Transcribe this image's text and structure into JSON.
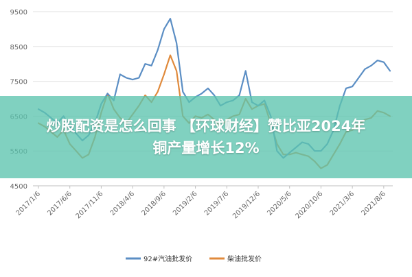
{
  "chart_data": {
    "type": "line",
    "title": "",
    "xlabel": "",
    "ylabel": "",
    "ylim": [
      4500,
      9500
    ],
    "yticks": [
      4500,
      5500,
      6500,
      7500,
      8500,
      9500
    ],
    "x_tick_labels": [
      "2017/1/6",
      "2017/6/6",
      "2017/11/6",
      "2018/4/6",
      "2018/9/6",
      "2019/2/6",
      "2019/7/6",
      "2019/12/6",
      "2020/5/6",
      "2020/10/6",
      "2021/3/6",
      "2021/8/6"
    ],
    "grid": {
      "horizontal": true,
      "vertical": false
    },
    "legend_position": "bottom-center",
    "series": [
      {
        "name": "92#汽油批发价",
        "color": "#5b8ec4",
        "points": [
          [
            "2017/1/6",
            6700
          ],
          [
            "2017/2/6",
            6600
          ],
          [
            "2017/3/6",
            6450
          ],
          [
            "2017/4/6",
            6300
          ],
          [
            "2017/5/6",
            6500
          ],
          [
            "2017/6/6",
            6200
          ],
          [
            "2017/7/6",
            6000
          ],
          [
            "2017/8/6",
            5800
          ],
          [
            "2017/9/6",
            5950
          ],
          [
            "2017/10/6",
            6300
          ],
          [
            "2017/11/6",
            6850
          ],
          [
            "2017/12/6",
            7150
          ],
          [
            "2018/1/6",
            6950
          ],
          [
            "2018/2/6",
            7700
          ],
          [
            "2018/3/6",
            7600
          ],
          [
            "2018/4/6",
            7550
          ],
          [
            "2018/5/6",
            7600
          ],
          [
            "2018/6/6",
            8000
          ],
          [
            "2018/7/6",
            7950
          ],
          [
            "2018/8/6",
            8400
          ],
          [
            "2018/9/6",
            9000
          ],
          [
            "2018/10/6",
            9300
          ],
          [
            "2018/11/6",
            8600
          ],
          [
            "2018/12/6",
            7200
          ],
          [
            "2019/1/6",
            6900
          ],
          [
            "2019/2/6",
            7050
          ],
          [
            "2019/3/6",
            7150
          ],
          [
            "2019/4/6",
            7300
          ],
          [
            "2019/5/6",
            7100
          ],
          [
            "2019/6/6",
            6800
          ],
          [
            "2019/7/6",
            6900
          ],
          [
            "2019/8/6",
            6950
          ],
          [
            "2019/9/6",
            7100
          ],
          [
            "2019/10/6",
            7800
          ],
          [
            "2019/11/6",
            6900
          ],
          [
            "2019/12/6",
            6800
          ],
          [
            "2020/1/6",
            6950
          ],
          [
            "2020/2/6",
            6500
          ],
          [
            "2020/3/6",
            5500
          ],
          [
            "2020/4/6",
            5300
          ],
          [
            "2020/5/6",
            5450
          ],
          [
            "2020/6/6",
            5600
          ],
          [
            "2020/7/6",
            5750
          ],
          [
            "2020/8/6",
            5700
          ],
          [
            "2020/9/6",
            5500
          ],
          [
            "2020/10/6",
            5500
          ],
          [
            "2020/11/6",
            5700
          ],
          [
            "2020/12/6",
            6100
          ],
          [
            "2021/1/6",
            6800
          ],
          [
            "2021/2/6",
            7300
          ],
          [
            "2021/3/6",
            7350
          ],
          [
            "2021/4/6",
            7600
          ],
          [
            "2021/5/6",
            7850
          ],
          [
            "2021/6/6",
            7950
          ],
          [
            "2021/7/6",
            8100
          ],
          [
            "2021/8/6",
            8050
          ],
          [
            "2021/9/6",
            7800
          ]
        ]
      },
      {
        "name": "柴油批发价",
        "color": "#e08a3c",
        "points": [
          [
            "2017/1/6",
            6300
          ],
          [
            "2017/2/6",
            6200
          ],
          [
            "2017/3/6",
            6050
          ],
          [
            "2017/4/6",
            5900
          ],
          [
            "2017/5/6",
            6100
          ],
          [
            "2017/6/6",
            5700
          ],
          [
            "2017/7/6",
            5500
          ],
          [
            "2017/8/6",
            5300
          ],
          [
            "2017/9/6",
            5400
          ],
          [
            "2017/10/6",
            5900
          ],
          [
            "2017/11/6",
            6600
          ],
          [
            "2017/12/6",
            7150
          ],
          [
            "2018/1/6",
            6700
          ],
          [
            "2018/2/6",
            6450
          ],
          [
            "2018/3/6",
            6300
          ],
          [
            "2018/4/6",
            6550
          ],
          [
            "2018/5/6",
            6800
          ],
          [
            "2018/6/6",
            7100
          ],
          [
            "2018/7/6",
            6900
          ],
          [
            "2018/8/6",
            7200
          ],
          [
            "2018/9/6",
            7700
          ],
          [
            "2018/10/6",
            8250
          ],
          [
            "2018/11/6",
            7800
          ],
          [
            "2018/12/6",
            6500
          ],
          [
            "2019/1/6",
            6300
          ],
          [
            "2019/2/6",
            6500
          ],
          [
            "2019/3/6",
            6450
          ],
          [
            "2019/4/6",
            6550
          ],
          [
            "2019/5/6",
            6400
          ],
          [
            "2019/6/6",
            6200
          ],
          [
            "2019/7/6",
            6400
          ],
          [
            "2019/8/6",
            6500
          ],
          [
            "2019/9/6",
            6550
          ],
          [
            "2019/10/6",
            7000
          ],
          [
            "2019/11/6",
            6700
          ],
          [
            "2019/12/6",
            6800
          ],
          [
            "2020/1/6",
            6850
          ],
          [
            "2020/2/6",
            6300
          ],
          [
            "2020/3/6",
            5700
          ],
          [
            "2020/4/6",
            5400
          ],
          [
            "2020/5/6",
            5400
          ],
          [
            "2020/6/6",
            5450
          ],
          [
            "2020/7/6",
            5400
          ],
          [
            "2020/8/6",
            5350
          ],
          [
            "2020/9/6",
            5200
          ],
          [
            "2020/10/6",
            5000
          ],
          [
            "2020/11/6",
            5100
          ],
          [
            "2020/12/6",
            5400
          ],
          [
            "2021/1/6",
            5700
          ],
          [
            "2021/2/6",
            6050
          ],
          [
            "2021/3/6",
            6100
          ],
          [
            "2021/4/6",
            6250
          ],
          [
            "2021/5/6",
            6400
          ],
          [
            "2021/6/6",
            6450
          ],
          [
            "2021/7/6",
            6650
          ],
          [
            "2021/8/6",
            6600
          ],
          [
            "2021/9/6",
            6500
          ]
        ]
      }
    ]
  },
  "overlay": {
    "line1": "炒股配资是怎么回事 【环球财经】赞比亚2024年",
    "line2": "铜产量增长12%"
  }
}
